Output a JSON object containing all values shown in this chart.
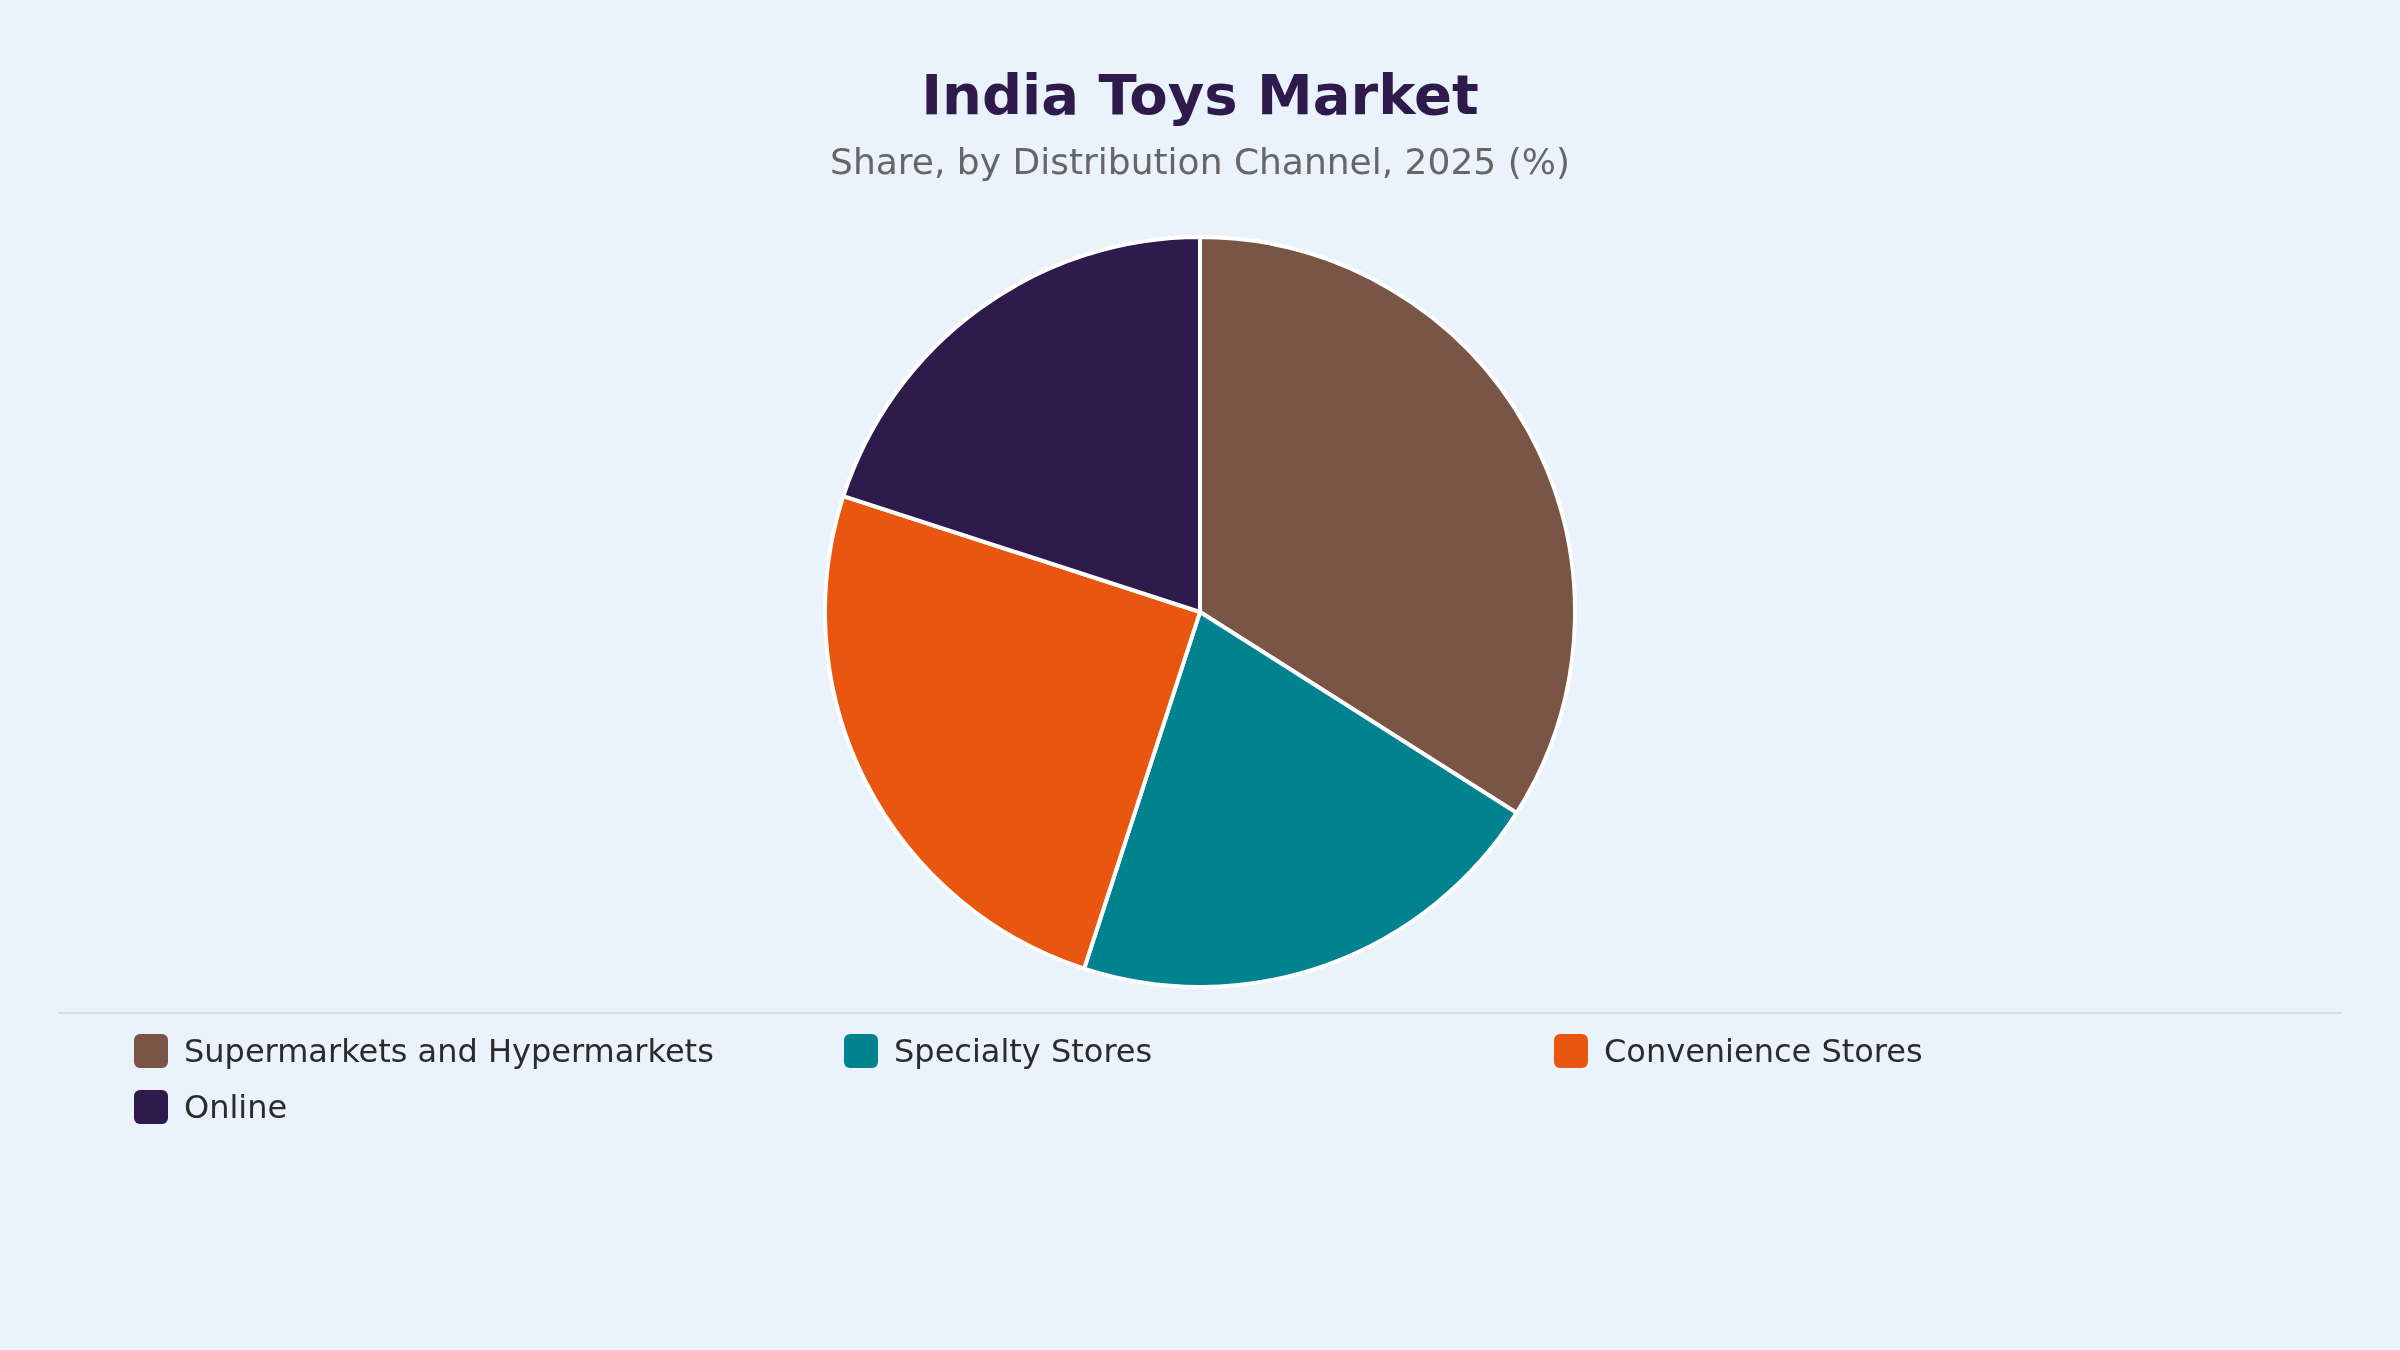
{
  "chart_data": {
    "type": "pie",
    "title": "India Toys Market",
    "subtitle": "Share, by Distribution Channel, 2025 (%)",
    "categories": [
      "Supermarkets and Hypermarkets",
      "Specialty Stores",
      "Convenience Stores",
      "Online"
    ],
    "values": [
      34,
      21,
      25,
      20
    ],
    "colors": [
      "#7a5546",
      "#00838f",
      "#e8560f",
      "#2e1a4b"
    ],
    "legend": "bottom"
  }
}
